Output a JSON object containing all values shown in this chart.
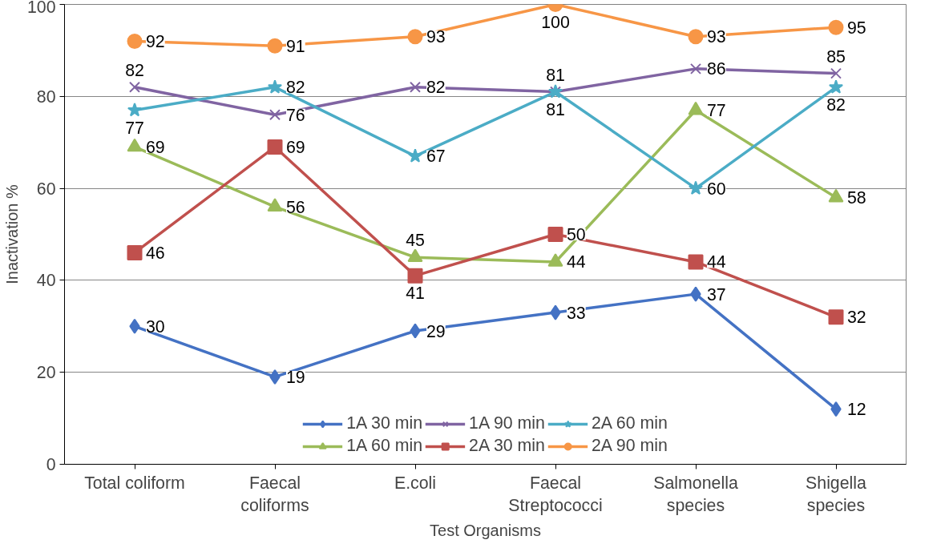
{
  "chart_data": {
    "type": "line",
    "xlabel": "Test Organisms",
    "ylabel": "Inactivation %",
    "categories": [
      "Total coliform",
      "Faecal\ncoliforms",
      "E.coli",
      "Faecal\nStreptococci",
      "Salmonella\nspecies",
      "Shigella\nspecies"
    ],
    "ylim": [
      0,
      100
    ],
    "yticks": [
      0,
      20,
      40,
      60,
      80,
      100
    ],
    "grid": "y",
    "legend": "bottom",
    "data_labels": true,
    "series": [
      {
        "name": "1A 30 min",
        "color": "#4472c4",
        "marker": "diamond",
        "values": [
          30,
          19,
          29,
          33,
          37,
          12
        ]
      },
      {
        "name": "1A 60 min",
        "color": "#9bbb59",
        "marker": "triangle",
        "values": [
          69,
          56,
          45,
          44,
          77,
          58
        ]
      },
      {
        "name": "1A 90 min",
        "color": "#8064a2",
        "marker": "cross",
        "values": [
          82,
          76,
          82,
          81,
          86,
          85
        ]
      },
      {
        "name": "2A 30 min",
        "color": "#c0504d",
        "marker": "square",
        "values": [
          46,
          69,
          41,
          50,
          44,
          32
        ]
      },
      {
        "name": "2A 60 min",
        "color": "#4bacc6",
        "marker": "star",
        "values": [
          77,
          82,
          67,
          81,
          60,
          82
        ]
      },
      {
        "name": "2A 90 min",
        "color": "#f79646",
        "marker": "circle",
        "values": [
          92,
          91,
          93,
          100,
          93,
          95
        ]
      }
    ]
  }
}
